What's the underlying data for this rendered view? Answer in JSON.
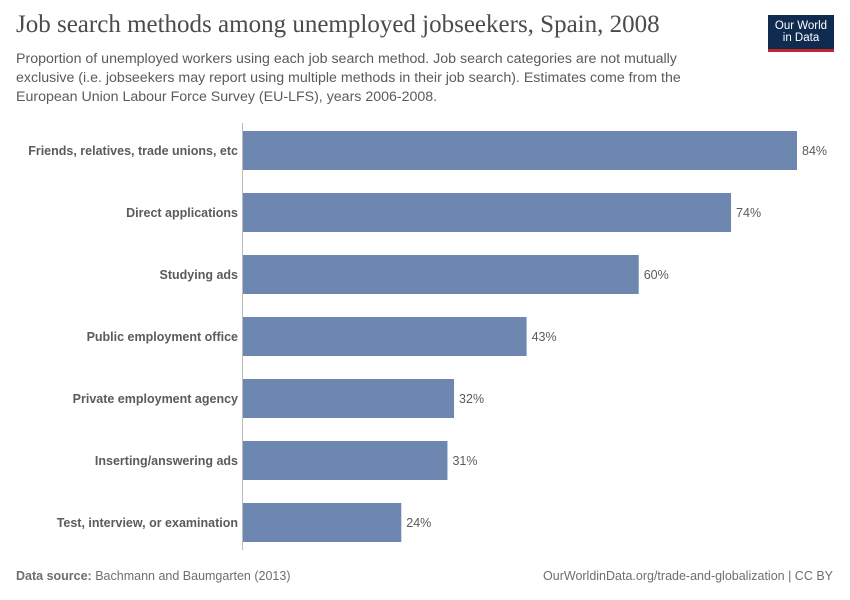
{
  "title": "Job search methods among unemployed jobseekers, Spain, 2008",
  "subtitle": "Proportion of unemployed workers using each job search method. Job search categories are not mutually exclusive (i.e. jobseekers may report using multiple methods in their job search). Estimates come from the European Union Labour Force Survey (EU-LFS), years 2006-2008.",
  "logo": {
    "line1": "Our World",
    "line2": "in Data",
    "bg_color": "#0f2b4f",
    "accent_color": "#c4222d"
  },
  "footer": {
    "source_label": "Data source:",
    "source_text": "Bachmann and Baumgarten (2013)",
    "right_text": "OurWorldinData.org/trade-and-globalization | CC BY"
  },
  "chart_data": {
    "type": "bar",
    "orientation": "horizontal",
    "bar_color": "#6d87b1",
    "categories": [
      "Friends, relatives, trade unions, etc",
      "Direct applications",
      "Studying ads",
      "Public employment office",
      "Private employment agency",
      "Inserting/answering ads",
      "Test, interview, or examination"
    ],
    "values": [
      84,
      74,
      60,
      43,
      32,
      31,
      24
    ],
    "value_labels": [
      "84%",
      "74%",
      "60%",
      "43%",
      "32%",
      "31%",
      "24%"
    ],
    "xlim": [
      0,
      84
    ],
    "grid": false,
    "legend": "none"
  }
}
